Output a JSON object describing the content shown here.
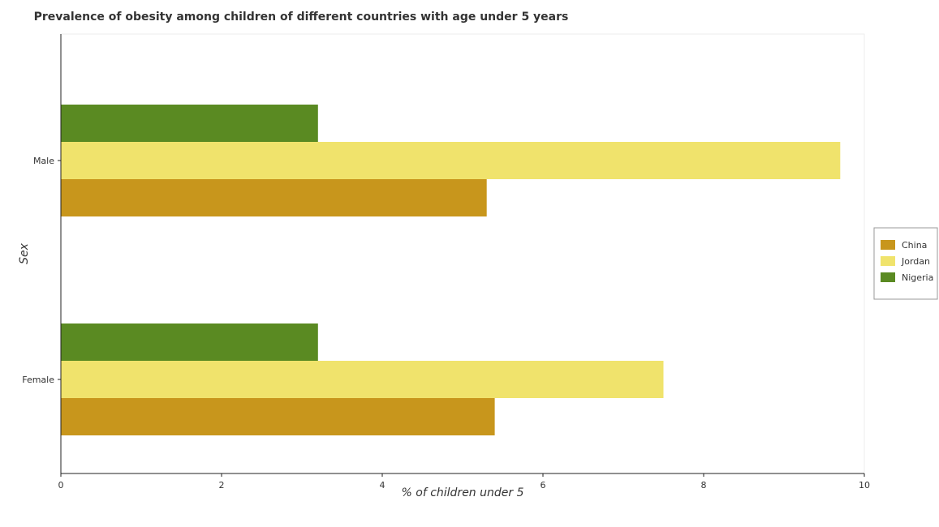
{
  "chart_data": {
    "type": "bar",
    "orientation": "horizontal",
    "title": "Prevalence of obesity among children of different countries with age under 5 years",
    "xlabel": "% of children under 5",
    "ylabel": "Sex",
    "xlim": [
      0,
      10
    ],
    "x_ticks": [
      0,
      2,
      4,
      6,
      8,
      10
    ],
    "x_tick_labels": [
      "0",
      "2",
      "4",
      "6",
      "8",
      "10"
    ],
    "categories": [
      "Female",
      "Male"
    ],
    "series": [
      {
        "name": "China",
        "color": "#c8961c",
        "values": [
          5.4,
          5.3
        ]
      },
      {
        "name": "Jordan",
        "color": "#f0e36c",
        "values": [
          7.5,
          9.7
        ]
      },
      {
        "name": "Nigeria",
        "color": "#5a8a22",
        "values": [
          3.2,
          3.2
        ]
      }
    ],
    "legend_position": "right",
    "grid": false
  }
}
